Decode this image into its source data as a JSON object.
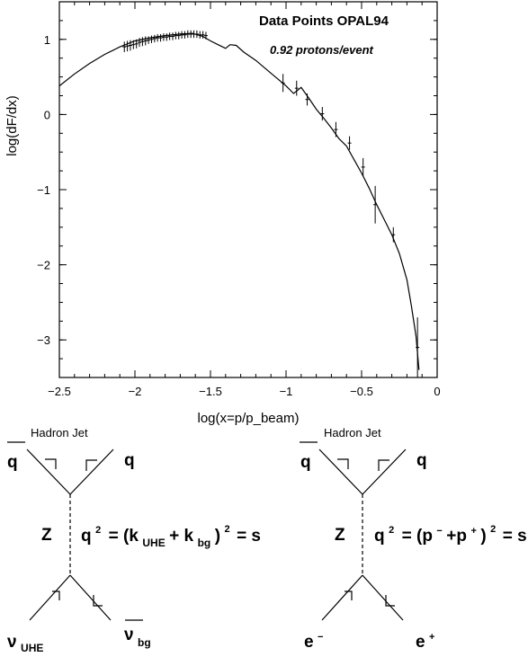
{
  "chart_data": {
    "type": "scatter",
    "title": "Data Points OPAL94",
    "subtitle": "0.92 protons/event",
    "xlabel": "log(x=p/p_beam)",
    "ylabel": "log(dF/dx)",
    "xlim": [
      -2.5,
      0
    ],
    "ylim": [
      -3.5,
      1.5
    ],
    "xticks": [
      "-2.5",
      "-2",
      "-1.5",
      "-1",
      "-0.5",
      "0"
    ],
    "yticks": [
      "1",
      "0",
      "-1",
      "-2",
      "-3"
    ],
    "xtick_values": [
      -2.5,
      -2.0,
      -1.5,
      -1.0,
      -0.5,
      0.0
    ],
    "ytick_values": [
      1,
      0,
      -1,
      -2,
      -3
    ],
    "grid": false,
    "curve": {
      "x": [
        -2.5,
        -2.4,
        -2.3,
        -2.2,
        -2.1,
        -2.0,
        -1.9,
        -1.8,
        -1.7,
        -1.62,
        -1.55,
        -1.5,
        -1.45,
        -1.4,
        -1.37,
        -1.33,
        -1.28,
        -1.2,
        -1.1,
        -1.0,
        -0.95,
        -0.9,
        -0.85,
        -0.8,
        -0.75,
        -0.7,
        -0.65,
        -0.6,
        -0.55,
        -0.5,
        -0.45,
        -0.4,
        -0.35,
        -0.3,
        -0.25,
        -0.2,
        -0.17,
        -0.14,
        -0.12
      ],
      "y": [
        0.38,
        0.54,
        0.68,
        0.8,
        0.9,
        0.98,
        1.02,
        1.05,
        1.07,
        1.08,
        1.04,
        0.98,
        0.93,
        0.88,
        0.93,
        0.92,
        0.83,
        0.72,
        0.55,
        0.38,
        0.28,
        0.36,
        0.22,
        0.07,
        -0.05,
        -0.18,
        -0.32,
        -0.42,
        -0.6,
        -0.78,
        -0.98,
        -1.2,
        -1.4,
        -1.6,
        -1.85,
        -2.2,
        -2.55,
        -2.95,
        -3.4
      ]
    },
    "points": {
      "x": [
        -2.07,
        -2.05,
        -2.03,
        -2.01,
        -1.99,
        -1.97,
        -1.95,
        -1.93,
        -1.91,
        -1.89,
        -1.87,
        -1.85,
        -1.83,
        -1.81,
        -1.79,
        -1.77,
        -1.75,
        -1.73,
        -1.71,
        -1.69,
        -1.67,
        -1.65,
        -1.63,
        -1.61,
        -1.59,
        -1.57,
        -1.55,
        -1.53,
        -1.02,
        -0.93,
        -0.86,
        -0.76,
        -0.67,
        -0.58,
        -0.49,
        -0.41,
        -0.29,
        -0.13
      ],
      "y": [
        0.9,
        0.91,
        0.92,
        0.93,
        0.94,
        0.96,
        0.97,
        0.98,
        0.99,
        1.0,
        1.01,
        1.02,
        1.02,
        1.03,
        1.03,
        1.04,
        1.04,
        1.05,
        1.05,
        1.06,
        1.06,
        1.07,
        1.07,
        1.07,
        1.07,
        1.06,
        1.06,
        1.05,
        0.42,
        0.35,
        0.2,
        0.01,
        -0.2,
        -0.38,
        -0.7,
        -1.2,
        -1.6,
        -3.1
      ],
      "yerr": [
        0.07,
        0.07,
        0.07,
        0.06,
        0.06,
        0.06,
        0.06,
        0.06,
        0.05,
        0.05,
        0.05,
        0.05,
        0.05,
        0.05,
        0.05,
        0.05,
        0.05,
        0.05,
        0.05,
        0.05,
        0.05,
        0.05,
        0.05,
        0.05,
        0.05,
        0.05,
        0.05,
        0.05,
        0.12,
        0.1,
        0.08,
        0.09,
        0.1,
        0.09,
        0.12,
        0.25,
        0.1,
        0.4
      ]
    }
  },
  "diagrams": [
    {
      "hadron_jet": "Hadron Jet",
      "top_left": "q",
      "top_right": "q",
      "boson": "Z",
      "q2_base": "q",
      "q2_exp": "2",
      "eq_open": "= (k",
      "eq_sub1": "UHE",
      "eq_plus": "+ k",
      "eq_sub2": "bg",
      "eq_close": ")",
      "eq_exp": "2",
      "eq_end": "= s",
      "bottom_left": "ν",
      "bottom_left_sub": "UHE",
      "bottom_right": "ν",
      "bottom_right_sub": "bg"
    },
    {
      "hadron_jet": "Hadron Jet",
      "top_left": "q",
      "top_right": "q",
      "boson": "Z",
      "q2_base": "q",
      "q2_exp": "2",
      "eq_open": "= (p",
      "eq_sup1": "−",
      "eq_plus": "+p",
      "eq_sup2": "+",
      "eq_close": ")",
      "eq_exp": "2",
      "eq_end": "= s",
      "bottom_left": "e",
      "bottom_left_sup": "−",
      "bottom_right": "e",
      "bottom_right_sup": "+"
    }
  ]
}
